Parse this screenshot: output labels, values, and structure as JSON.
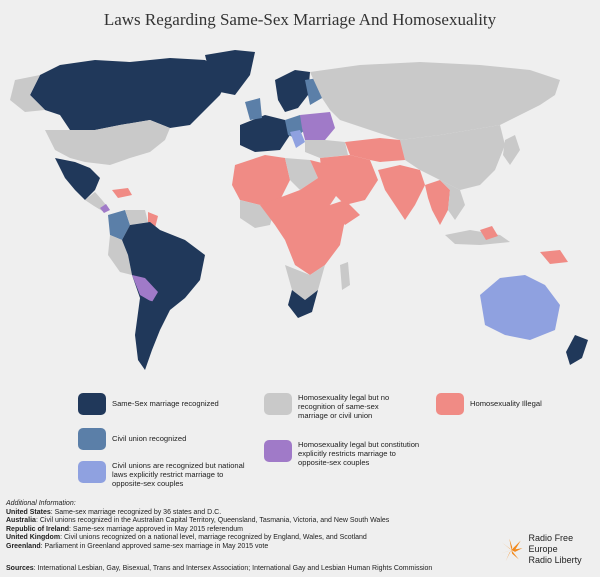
{
  "title": "Laws Regarding Same-Sex Marriage And Homosexuality",
  "colors": {
    "same_sex_marriage": "#20385a",
    "civil_union": "#5b7fa8",
    "civil_unions_national_restrict": "#8fa1e0",
    "legal_no_recognition": "#c9c9c9",
    "legal_constitution_restricts": "#a07ac8",
    "illegal": "#f08b85",
    "background": "#efefef"
  },
  "legend": [
    {
      "key": "same_sex_marriage",
      "label": "Same-Sex marriage recognized"
    },
    {
      "key": "civil_union",
      "label": "Civil union recognized"
    },
    {
      "key": "civil_unions_national_restrict",
      "label": "Civil unions are recognized but national laws explicitly restrict marriage to opposite-sex couples"
    },
    {
      "key": "legal_no_recognition",
      "label": "Homosexuality legal but no recognition of same-sex marriage or civil union"
    },
    {
      "key": "legal_constitution_restricts",
      "label": "Homosexuality legal but constitution explicitly restricts marriage to opposite-sex couples"
    },
    {
      "key": "illegal",
      "label": "Homosexuality Illegal"
    }
  ],
  "info": {
    "heading": "Additional Information:",
    "lines": [
      {
        "label": "United States",
        "text": ": Same-sex marriage recognized by 36 states and D.C."
      },
      {
        "label": "Australia",
        "text": ": Civil unions recognized in the Australian Capital Territory, Queensland, Tasmania, Victoria, and New South Wales"
      },
      {
        "label": "Republic of Ireland",
        "text": ": Same-sex marriage approved in May 2015 referendum"
      },
      {
        "label": "United Kingdom",
        "text": ": Civil unions recognized on a national level, marriage recognized by England, Wales, and Scotland"
      },
      {
        "label": "Greenland",
        "text": ": Parliament in Greenland approved same-sex marriage in May 2015 vote"
      }
    ]
  },
  "sources": {
    "label": "Sources",
    "text": ": International Lesbian, Gay, Bisexual, Trans and Intersex Association; International Gay and Lesbian Human Rights Commission"
  },
  "logo": {
    "line1": "Radio Free Europe",
    "line2": "Radio Liberty",
    "color": "#f28a1e"
  }
}
